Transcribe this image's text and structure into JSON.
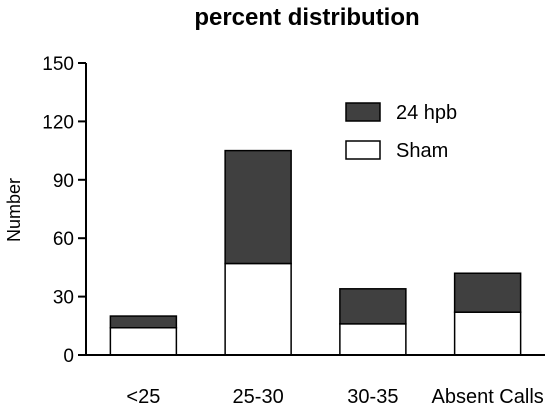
{
  "chart_data": {
    "type": "bar",
    "stacked": true,
    "title": "percent distribution",
    "xlabel": "",
    "ylabel": "Number",
    "categories": [
      "<25",
      "25-30",
      "30-35",
      "Absent Calls"
    ],
    "series": [
      {
        "name": "Sham",
        "values": [
          14,
          47,
          16,
          22
        ],
        "color": "#ffffff"
      },
      {
        "name": "24 hpb",
        "values": [
          6,
          58,
          18,
          20
        ],
        "color": "#404040"
      }
    ],
    "ylim": [
      0,
      150
    ],
    "yticks": [
      0,
      30,
      60,
      90,
      120,
      150
    ],
    "grid": false,
    "legend": "top-right",
    "legend_order": [
      "24 hpb",
      "Sham"
    ]
  }
}
